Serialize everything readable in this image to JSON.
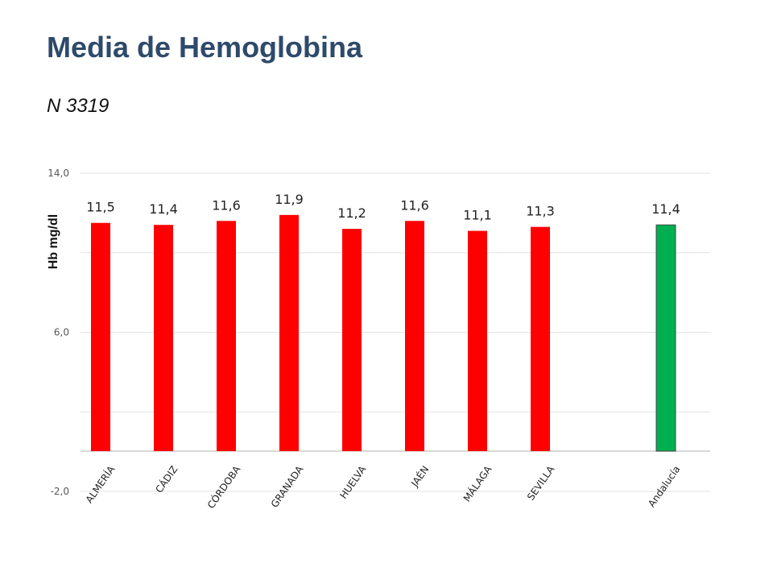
{
  "header": {
    "title": "Media de Hemoglobina",
    "subtitle": "N 3319"
  },
  "chart_data": {
    "type": "bar",
    "ylabel": "Hb  mg/dl",
    "ylim": [
      -2,
      14
    ],
    "y_ticks": [
      {
        "value": 14,
        "label": "14,0"
      },
      {
        "value": 6,
        "label": "6,0"
      },
      {
        "value": -2,
        "label": "-2,0"
      }
    ],
    "gridlines": [
      14,
      10,
      6,
      2,
      -2
    ],
    "grid": true,
    "legend": "none",
    "categories": [
      "ALMERÍA",
      "CÁDIZ",
      "CÓRDOBA",
      "GRANADA",
      "HUELVA",
      "JAÉN",
      "MÁLAGA",
      "SEVILLA",
      "Andalucía"
    ],
    "values": [
      11.5,
      11.4,
      11.6,
      11.9,
      11.2,
      11.6,
      11.1,
      11.3,
      11.4
    ],
    "value_labels": [
      "11,5",
      "11,4",
      "11,6",
      "11,9",
      "11,2",
      "11,6",
      "11,1",
      "11,3",
      "11,4"
    ],
    "colors": [
      "#ff0000",
      "#ff0000",
      "#ff0000",
      "#ff0000",
      "#ff0000",
      "#ff0000",
      "#ff0000",
      "#ff0000",
      "#00b050"
    ]
  }
}
